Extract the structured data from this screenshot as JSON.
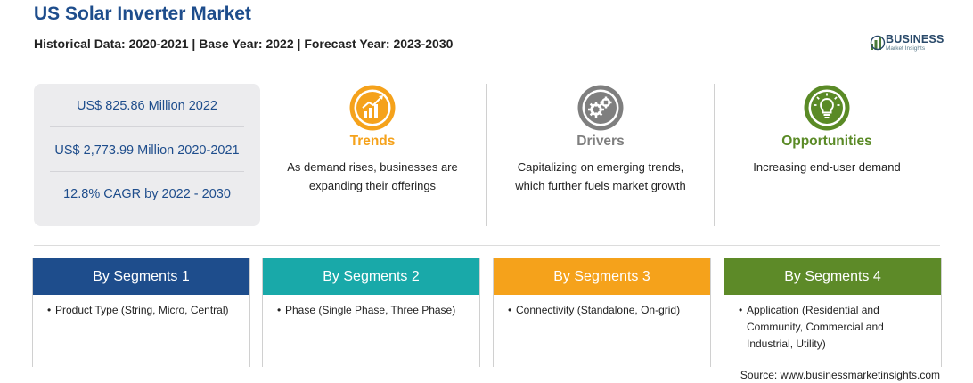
{
  "header": {
    "title": "US Solar Inverter Market",
    "subtitle": "Historical Data: 2020-2021 | Base Year: 2022 | Forecast Year: 2023-2030"
  },
  "logo": {
    "main": "BUSINESS",
    "sub": "Market Insights",
    "icon": "bar-chart-globe-icon"
  },
  "stats": [
    "US$ 825.86 Million 2022",
    "US$ 2,773.99 Million 2020-2021",
    "12.8% CAGR by 2022 - 2030"
  ],
  "insights": {
    "trends": {
      "heading": "Trends",
      "description_line1": "As demand rises, businesses are",
      "description_line2": "expanding their offerings",
      "icon": "growth-chart-icon",
      "color": "#f5a21b"
    },
    "drivers": {
      "heading": "Drivers",
      "description_line1": "Capitalizing on emerging trends,",
      "description_line2": "which further fuels market growth",
      "icon": "gears-icon",
      "color": "#7f7f7f"
    },
    "opportunities": {
      "heading": "Opportunities",
      "description_line1": "Increasing end-user demand",
      "description_line2": "",
      "icon": "lightbulb-icon",
      "color": "#5a8a26"
    }
  },
  "segments": [
    {
      "heading": "By Segments 1",
      "color": "#1e4d8c",
      "items": [
        "Product Type (String, Micro, Central)"
      ]
    },
    {
      "heading": "By Segments 2",
      "color": "#19a9a9",
      "items": [
        "Phase (Single Phase, Three Phase)"
      ]
    },
    {
      "heading": "By Segments 3",
      "color": "#f5a21b",
      "items": [
        "Connectivity (Standalone, On-grid)"
      ]
    },
    {
      "heading": "By Segments 4",
      "color": "#5d8a28",
      "items": [
        "Application (Residential and Community, Commercial and Industrial, Utility)"
      ]
    }
  ],
  "source": "Source: www.businessmarketinsights.com"
}
